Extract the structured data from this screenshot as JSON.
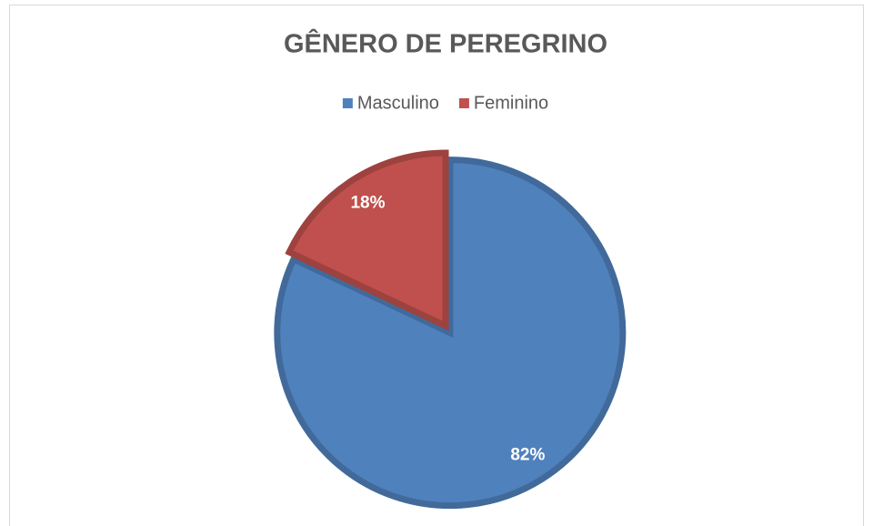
{
  "chart_data": {
    "type": "pie",
    "title": "GÊNERO DE PEREGRINO",
    "categories": [
      "Masculino",
      "Feminino"
    ],
    "values": [
      82,
      18
    ],
    "value_labels": [
      "82%",
      "18%"
    ],
    "colors": [
      "#4f81bd",
      "#c0504d"
    ],
    "legend": "top"
  }
}
